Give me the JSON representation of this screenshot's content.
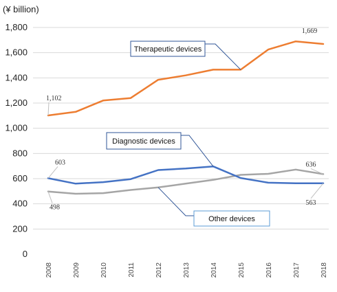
{
  "chart_data": {
    "type": "line",
    "unit_label": "(¥ billion)",
    "categories": [
      "2008",
      "2009",
      "2010",
      "2011",
      "2012",
      "2013",
      "2014",
      "2015",
      "2016",
      "2017",
      "2018"
    ],
    "ylim": [
      0,
      1800
    ],
    "yticks": [
      0,
      200,
      400,
      600,
      800,
      1000,
      1200,
      1400,
      1600,
      1800
    ],
    "ytick_labels": [
      "0",
      "200",
      "400",
      "600",
      "800",
      "1,000",
      "1,200",
      "1,400",
      "1,600",
      "1,800"
    ],
    "grid": true,
    "series": [
      {
        "name": "Therapeutic devices",
        "color": "#ed7d31",
        "values": [
          1102,
          1130,
          1220,
          1240,
          1385,
          1420,
          1465,
          1465,
          1625,
          1690,
          1669
        ],
        "labels": [
          {
            "index": 0,
            "text": "1,102"
          },
          {
            "index": 10,
            "text": "1,669"
          }
        ]
      },
      {
        "name": "Diagnostic devices",
        "color": "#4472c4",
        "values": [
          603,
          560,
          572,
          596,
          668,
          680,
          697,
          605,
          568,
          563,
          563
        ],
        "labels": [
          {
            "index": 0,
            "text": "603"
          },
          {
            "index": 10,
            "text": "563"
          }
        ]
      },
      {
        "name": "Other devices",
        "color": "#a5a5a5",
        "values": [
          498,
          480,
          485,
          510,
          530,
          560,
          590,
          630,
          638,
          672,
          636
        ],
        "labels": [
          {
            "index": 0,
            "text": "498"
          },
          {
            "index": 10,
            "text": "636"
          }
        ]
      }
    ]
  }
}
